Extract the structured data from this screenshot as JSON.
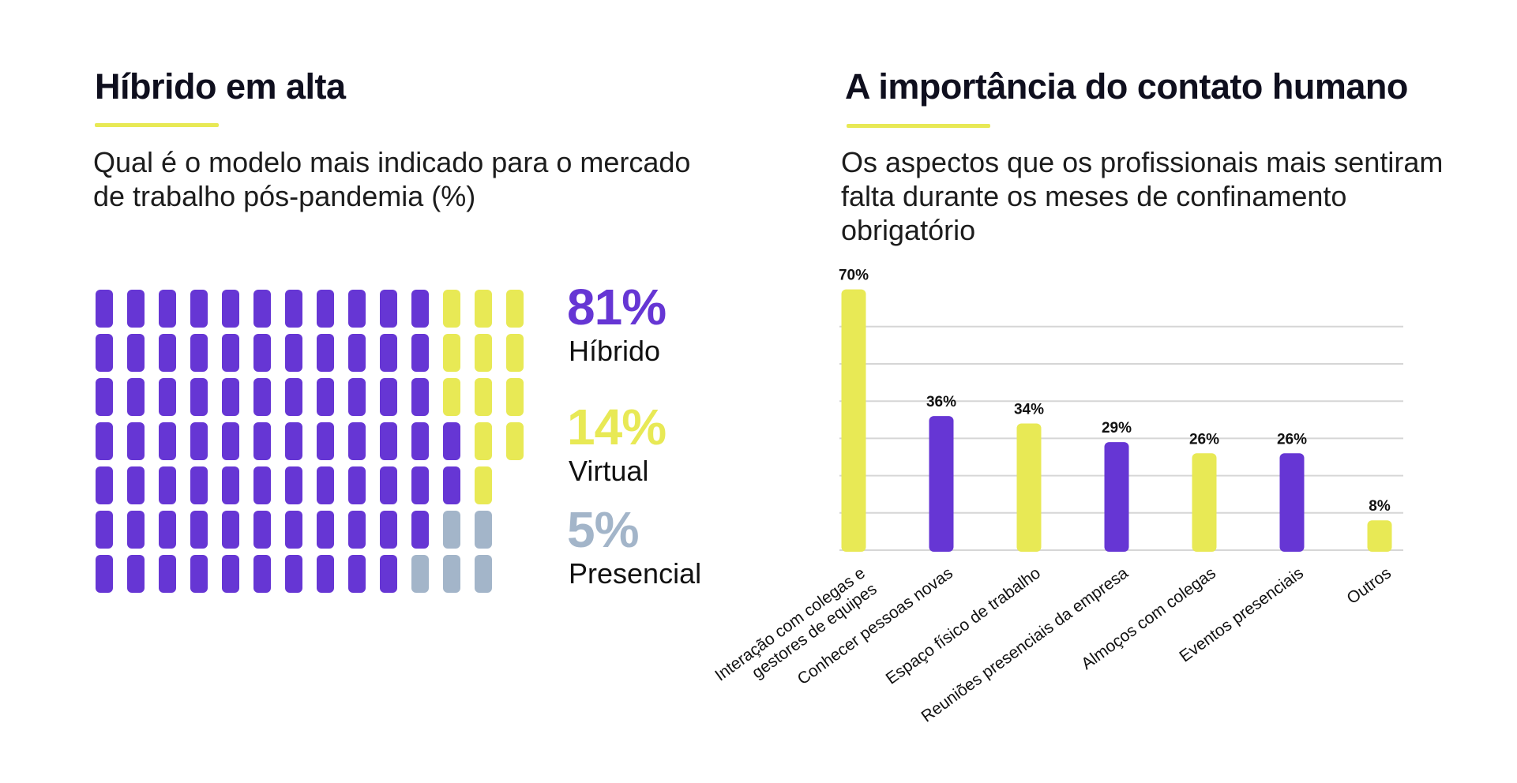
{
  "colors": {
    "purple": "#6636D4",
    "yellow": "#E8E955",
    "gray": "#A3B5C9",
    "grid": "#d6d6d6",
    "dark": "#0f0f1e"
  },
  "left": {
    "title": "Híbrido em alta",
    "subtitle": "Qual é o modelo mais indicado para o mercado de trabalho pós-pandemia (%)"
  },
  "right": {
    "title": "A importância do contato humano",
    "subtitle": "Os aspectos que os profissionais mais sentiram falta durante os meses de confinamento obrigatório"
  },
  "chart_data": [
    {
      "type": "waffle",
      "title": "Qual é o modelo mais indicado para o mercado de trabalho pós-pandemia (%)",
      "series": [
        {
          "name": "Híbrido",
          "value": 81,
          "label": "81%",
          "color": "purple"
        },
        {
          "name": "Virtual",
          "value": 14,
          "label": "14%",
          "color": "yellow"
        },
        {
          "name": "Presencial",
          "value": 5,
          "label": "5%",
          "color": "gray"
        }
      ]
    },
    {
      "type": "bar",
      "title": "Os aspectos que os profissionais mais sentiram falta durante os meses de confinamento obrigatório",
      "categories": [
        "Interação com colegas e gestores de equipes",
        "Conhecer pessoas novas",
        "Espaço físico de trabalho",
        "Reuniões presenciais da empresa",
        "Almoços com colegas",
        "Eventos presenciais",
        "Outros"
      ],
      "category_lines": [
        [
          "Interação com colegas e",
          "gestores de equipes"
        ],
        [
          "Conhecer pessoas novas"
        ],
        [
          "Espaço físico de trabalho"
        ],
        [
          "Reuniões presenciais da empresa"
        ],
        [
          "Almoços com colegas"
        ],
        [
          "Eventos presenciais"
        ],
        [
          "Outros"
        ]
      ],
      "values": [
        70,
        36,
        34,
        29,
        26,
        26,
        8
      ],
      "value_labels": [
        "70%",
        "36%",
        "34%",
        "29%",
        "26%",
        "26%",
        "8%"
      ],
      "bar_colors": [
        "yellow",
        "purple",
        "yellow",
        "purple",
        "yellow",
        "purple",
        "yellow"
      ],
      "ylim": [
        0,
        60
      ],
      "grid": true,
      "xlabel": "",
      "ylabel": ""
    }
  ]
}
